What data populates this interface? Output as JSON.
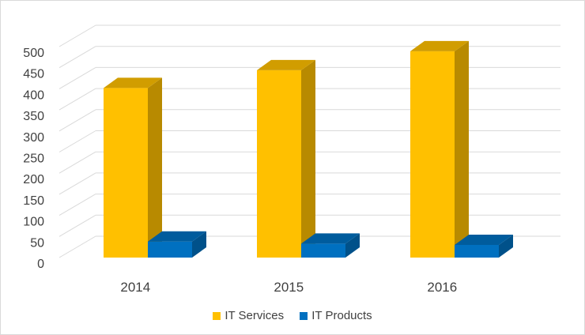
{
  "chart_data": {
    "type": "bar",
    "categories": [
      "2014",
      "2015",
      "2016"
    ],
    "series": [
      {
        "name": "IT Services",
        "values": [
          402,
          444,
          489
        ],
        "color": "#FFC000"
      },
      {
        "name": "IT Products",
        "values": [
          38,
          33,
          30
        ],
        "color": "#0070C0"
      }
    ],
    "ylim": [
      0,
      500
    ],
    "yticks": [
      "0",
      "50",
      "100",
      "150",
      "200",
      "250",
      "300",
      "350",
      "400",
      "450",
      "500"
    ],
    "grid": true,
    "legend_position": "bottom",
    "style": "3d-clustered-column"
  }
}
